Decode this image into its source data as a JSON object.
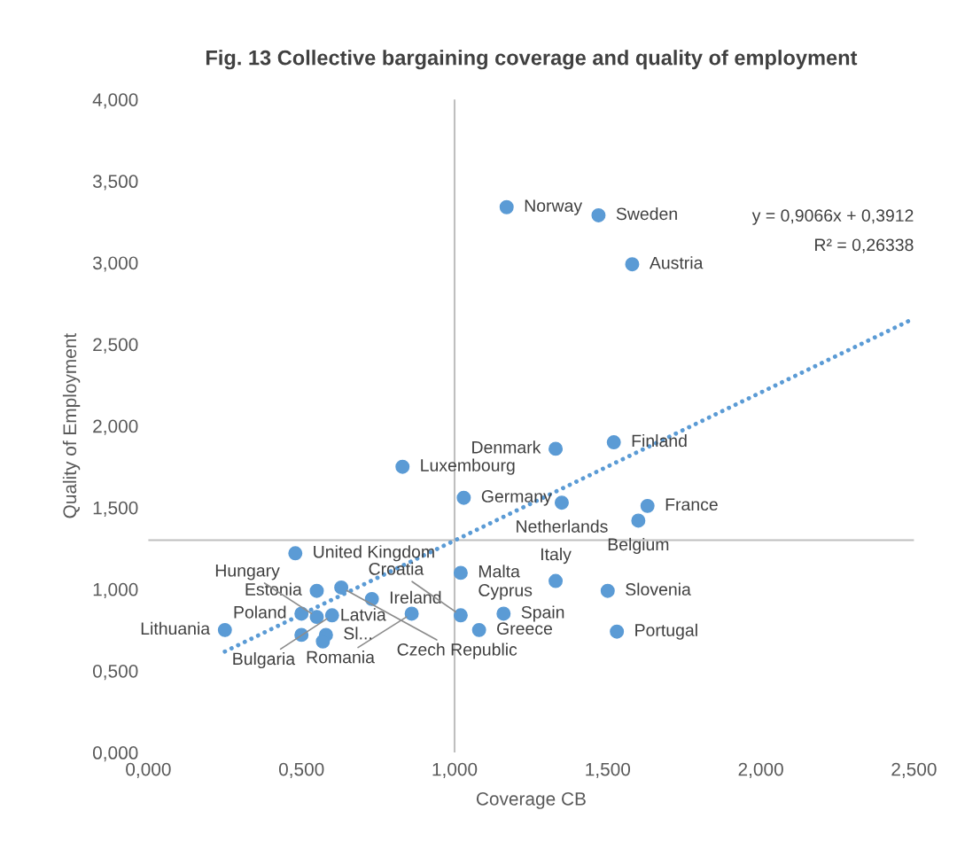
{
  "chart_data": {
    "type": "scatter",
    "title": "Fig. 13 Collective bargaining coverage and quality of employment",
    "xlabel": "Coverage CB",
    "ylabel": "Quality of Employment",
    "xlim": [
      0,
      2.5
    ],
    "ylim": [
      0,
      4
    ],
    "xticks": [
      {
        "value": 0,
        "label": "0,000"
      },
      {
        "value": 0.5,
        "label": "0,500"
      },
      {
        "value": 1,
        "label": "1,000"
      },
      {
        "value": 1.5,
        "label": "1,500"
      },
      {
        "value": 2,
        "label": "2,000"
      },
      {
        "value": 2.5,
        "label": "2,500"
      }
    ],
    "yticks": [
      {
        "value": 0,
        "label": "0,000"
      },
      {
        "value": 0.5,
        "label": "0,500"
      },
      {
        "value": 1,
        "label": "1,000"
      },
      {
        "value": 1.5,
        "label": "1,500"
      },
      {
        "value": 2,
        "label": "2,000"
      },
      {
        "value": 2.5,
        "label": "2,500"
      },
      {
        "value": 3,
        "label": "3,000"
      },
      {
        "value": 3.5,
        "label": "3,500"
      },
      {
        "value": 4,
        "label": "4,000"
      }
    ],
    "grid": false,
    "legend": false,
    "marker": "circle",
    "series": [
      {
        "type": "scatter",
        "color": "#5b9bd5",
        "x": [
          1.17,
          1.47,
          1.58,
          1.52,
          1.33,
          0.83,
          1.03,
          1.35,
          1.63,
          1.6,
          0.48,
          1.02,
          1.33,
          1.5,
          0.55,
          0.63,
          0.73,
          0.5,
          0.6,
          0.86,
          null,
          1.02,
          1.16,
          1.08,
          1.53,
          0.25,
          0.55,
          0.58,
          0.5,
          0.57
        ],
        "values": [
          3.34,
          3.29,
          2.99,
          1.9,
          1.86,
          1.75,
          1.56,
          1.53,
          1.51,
          1.42,
          1.22,
          1.1,
          1.05,
          0.99,
          0.99,
          1.01,
          0.94,
          0.85,
          0.84,
          0.85,
          null,
          0.84,
          0.85,
          0.75,
          0.74,
          0.75,
          0.83,
          0.72,
          0.72,
          0.68
        ]
      },
      {
        "type": "line",
        "color": "#5b9bd5",
        "line_style": "dotted",
        "marker": "none",
        "x": [
          0.25,
          2.5
        ],
        "values": [
          0.618,
          2.658
        ]
      }
    ],
    "ref_lines": [
      {
        "axis": "x",
        "value": 1,
        "color": "#bfbfbf"
      },
      {
        "axis": "y",
        "value": 1.3,
        "color": "#bfbfbf"
      }
    ],
    "annotations": [
      {
        "text": "Norway",
        "x": 1.17,
        "y": 3.34
      },
      {
        "text": "Sweden",
        "x": 1.47,
        "y": 3.29
      },
      {
        "text": "Austria",
        "x": 1.58,
        "y": 2.99
      },
      {
        "text": "Finland",
        "x": 1.52,
        "y": 1.9
      },
      {
        "text": "Denmark",
        "x": 1.33,
        "y": 1.86
      },
      {
        "text": "Luxembourg",
        "x": 0.83,
        "y": 1.75
      },
      {
        "text": "Germany",
        "x": 1.03,
        "y": 1.56
      },
      {
        "text": "Netherlands",
        "x": 1.35,
        "y": 1.53
      },
      {
        "text": "France",
        "x": 1.63,
        "y": 1.51
      },
      {
        "text": "Belgium",
        "x": 1.6,
        "y": 1.42
      },
      {
        "text": "United Kingdom",
        "x": 0.48,
        "y": 1.22
      },
      {
        "text": "Malta",
        "x": 1.02,
        "y": 1.1
      },
      {
        "text": "Italy",
        "x": 1.33,
        "y": 1.05
      },
      {
        "text": "Slovenia",
        "x": 1.5,
        "y": 0.99
      },
      {
        "text": "Estonia",
        "x": 0.55,
        "y": 0.99
      },
      {
        "text": "Czech Republic",
        "x": 0.63,
        "y": 1.01
      },
      {
        "text": "Ireland",
        "x": 0.73,
        "y": 0.94
      },
      {
        "text": "Poland",
        "x": 0.5,
        "y": 0.85
      },
      {
        "text": "Bulgaria",
        "x": 0.6,
        "y": 0.84
      },
      {
        "text": "Romania",
        "x": 0.86,
        "y": 0.85
      },
      {
        "text": "Cyprus",
        "x": 1.02,
        "y": 0.83
      },
      {
        "text": "Croatia",
        "x": 1.02,
        "y": 0.84
      },
      {
        "text": "Spain",
        "x": 1.16,
        "y": 0.85
      },
      {
        "text": "Greece",
        "x": 1.08,
        "y": 0.75
      },
      {
        "text": "Portugal",
        "x": 1.53,
        "y": 0.74
      },
      {
        "text": "Lithuania",
        "x": 0.25,
        "y": 0.75
      },
      {
        "text": "Hungary",
        "x": 0.55,
        "y": 0.83
      },
      {
        "text": "Sl...",
        "x": 0.58,
        "y": 0.72
      },
      {
        "text": "Latvia",
        "x": 0.57,
        "y": 0.68
      },
      "y = 0,9066x + 0,3912",
      "R² = 0,26338"
    ]
  }
}
